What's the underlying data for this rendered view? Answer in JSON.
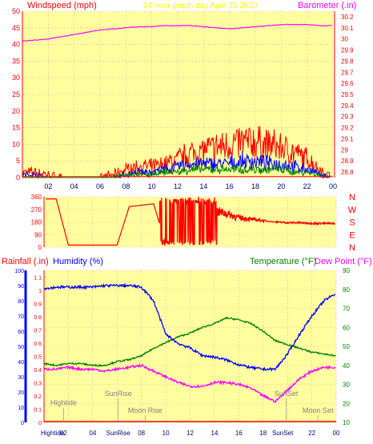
{
  "title": "24 hour graph day   April 25 2020",
  "colors": {
    "plot_bg": "#ffffa0",
    "grid": "#ffb0b0",
    "wind": "#ff0000",
    "gust": "#0000ff",
    "avg": "#008000",
    "baro": "#ff00ff",
    "rain": "#ff0000",
    "humidity": "#0000ff",
    "temp": "#008000",
    "dew": "#ff00ff",
    "events": "#808080"
  },
  "chart_data": [
    {
      "type": "line",
      "name": "wind-barometer",
      "left_label": "Windspeed (mph)",
      "right_label": "Barometer (.in)",
      "x_ticks": [
        "02",
        "04",
        "06",
        "08",
        "10",
        "12",
        "14",
        "16",
        "18",
        "20",
        "22",
        "00"
      ],
      "y_left_ticks": [
        0,
        5,
        10,
        15,
        20,
        25,
        30,
        35,
        40,
        45,
        50
      ],
      "y_right_ticks": [
        28.8,
        28.9,
        29,
        29.1,
        29.2,
        29.3,
        29.4,
        29.5,
        29.6,
        29.7,
        29.8,
        29.9,
        30,
        30.1,
        30.2
      ],
      "ylim_left": [
        0,
        50
      ],
      "ylim_right": [
        28.75,
        30.25
      ],
      "x_hours": [
        0,
        1,
        2,
        3,
        4,
        5,
        6,
        7,
        8,
        9,
        10,
        11,
        12,
        13,
        14,
        15,
        16,
        17,
        18,
        19,
        20,
        21,
        22,
        23,
        24
      ],
      "wind_max": [
        2,
        2,
        1,
        0,
        0,
        0,
        0,
        1,
        3,
        4,
        4,
        5,
        7,
        9,
        10,
        11,
        12,
        13,
        13,
        12,
        11,
        9,
        7,
        3,
        0
      ],
      "gust": [
        1,
        1,
        0,
        0,
        0,
        0,
        0,
        0,
        1,
        2,
        2,
        3,
        4,
        5,
        5,
        5,
        5,
        6,
        6,
        5,
        5,
        4,
        3,
        1,
        0
      ],
      "wind_avg": [
        0,
        0,
        0,
        0,
        0,
        0,
        0,
        0,
        1,
        1,
        1,
        2,
        2,
        3,
        3,
        3,
        3,
        3,
        3,
        3,
        3,
        2,
        2,
        1,
        0
      ],
      "barometer": [
        29.98,
        29.99,
        30.0,
        30.02,
        30.04,
        30.06,
        30.08,
        30.09,
        30.1,
        30.11,
        30.11,
        30.12,
        30.12,
        30.12,
        30.11,
        30.1,
        30.09,
        30.1,
        30.11,
        30.12,
        30.13,
        30.13,
        30.13,
        30.12,
        30.12
      ]
    },
    {
      "type": "line",
      "name": "wind-direction",
      "y_left_ticks": [
        0,
        90,
        180,
        270,
        360
      ],
      "y_right_labels": [
        "N",
        "W",
        "S",
        "E",
        "N"
      ],
      "ylim": [
        0,
        360
      ],
      "x_hours": [
        0,
        1,
        2,
        3,
        4,
        5,
        6,
        7,
        8,
        9,
        10,
        11,
        12,
        13,
        14,
        15,
        16,
        17,
        18,
        19,
        20,
        21,
        22,
        23,
        24
      ],
      "direction": [
        345,
        345,
        15,
        15,
        15,
        15,
        15,
        290,
        300,
        310,
        20,
        340,
        30,
        340,
        260,
        240,
        210,
        200,
        190,
        180,
        175,
        175,
        170,
        170,
        170
      ]
    },
    {
      "type": "line",
      "name": "rain-humidity-temperature",
      "left_labels": [
        "Rainfall (.in)",
        "Humidity (%)"
      ],
      "right_labels": [
        "Temperature (°F)",
        "Dew Point (°F)"
      ],
      "y_rain_ticks": [
        0,
        0.1,
        0.2,
        0.3,
        0.4,
        0.5,
        0.6,
        0.7,
        0.8,
        0.9,
        1,
        1.1
      ],
      "y_humidity_ticks": [
        0,
        10,
        20,
        30,
        40,
        50,
        60,
        70,
        80,
        90,
        100
      ],
      "y_temp_ticks": [
        10,
        20,
        30,
        40,
        50,
        60,
        70,
        80,
        90
      ],
      "ylim_humidity": [
        0,
        100
      ],
      "ylim_temp": [
        10,
        90
      ],
      "x_ticks": [
        "Hightide",
        "02",
        "04",
        "SunRise",
        "08",
        "10",
        "12",
        "14",
        "16",
        "18",
        "SunSet",
        "22",
        "00"
      ],
      "x_hours": [
        0,
        1,
        2,
        3,
        4,
        5,
        6,
        7,
        8,
        9,
        10,
        11,
        12,
        13,
        14,
        15,
        16,
        17,
        18,
        19,
        20,
        21,
        22,
        23,
        24
      ],
      "humidity": [
        88,
        89,
        89,
        89,
        89,
        90,
        90,
        90,
        89,
        80,
        58,
        52,
        49,
        44,
        43,
        41,
        38,
        36,
        35,
        35,
        45,
        58,
        70,
        80,
        85
      ],
      "temperature": [
        41,
        40,
        41,
        41,
        40,
        40,
        42,
        43,
        45,
        49,
        52,
        55,
        57,
        60,
        62,
        65,
        64,
        62,
        58,
        53,
        51,
        49,
        47,
        46,
        45
      ],
      "dewpoint": [
        38,
        38,
        39,
        38,
        38,
        37,
        38,
        39,
        40,
        37,
        34,
        31,
        29,
        29,
        31,
        31,
        30,
        28,
        24,
        21,
        27,
        33,
        37,
        39,
        39
      ],
      "rainfall": [
        0,
        0,
        0,
        0,
        0,
        0,
        0,
        0,
        0,
        0,
        0,
        0,
        0,
        0,
        0,
        0,
        0,
        0,
        0,
        0,
        0,
        0,
        0,
        0,
        0
      ],
      "events": [
        {
          "label": "Hightide",
          "hour": 1.6,
          "temp": 19
        },
        {
          "label": "SunRise",
          "hour": 6.1,
          "temp": 24
        },
        {
          "label": "Moon Rise",
          "hour": 8.3,
          "temp": 15
        },
        {
          "label": "SunSet",
          "hour": 19.9,
          "temp": 24
        },
        {
          "label": "Moon Set",
          "hour": 22.5,
          "temp": 15
        }
      ]
    }
  ]
}
